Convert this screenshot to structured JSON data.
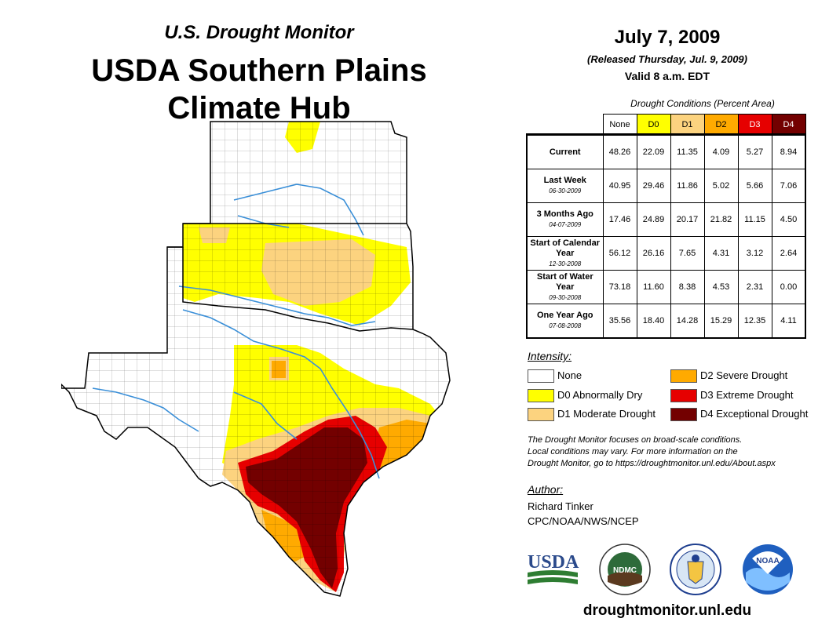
{
  "header": {
    "subtitle": "U.S. Drought Monitor",
    "title_line1": "USDA Southern Plains",
    "title_line2": "Climate Hub"
  },
  "release": {
    "date": "July 7, 2009",
    "released": "(Released Thursday, Jul. 9, 2009)",
    "valid": "Valid 8 a.m. EDT"
  },
  "table": {
    "caption": "Drought Conditions (Percent Area)",
    "columns": [
      "None",
      "D0",
      "D1",
      "D2",
      "D3",
      "D4"
    ],
    "column_colors": [
      "#ffffff",
      "#ffff00",
      "#fcd37f",
      "#ffaa00",
      "#e60000",
      "#730000"
    ],
    "rows": [
      {
        "label": "Current",
        "date": "",
        "values": [
          "48.26",
          "22.09",
          "11.35",
          "4.09",
          "5.27",
          "8.94"
        ]
      },
      {
        "label": "Last Week",
        "date": "06-30-2009",
        "values": [
          "40.95",
          "29.46",
          "11.86",
          "5.02",
          "5.66",
          "7.06"
        ]
      },
      {
        "label": "3 Months Ago",
        "date": "04-07-2009",
        "values": [
          "17.46",
          "24.89",
          "20.17",
          "21.82",
          "11.15",
          "4.50"
        ]
      },
      {
        "label": "Start of Calendar Year",
        "date": "12-30-2008",
        "values": [
          "56.12",
          "26.16",
          "7.65",
          "4.31",
          "3.12",
          "2.64"
        ]
      },
      {
        "label": "Start of Water Year",
        "date": "09-30-2008",
        "values": [
          "73.18",
          "11.60",
          "8.38",
          "4.53",
          "2.31",
          "0.00"
        ]
      },
      {
        "label": "One Year Ago",
        "date": "07-08-2008",
        "values": [
          "35.56",
          "18.40",
          "14.28",
          "15.29",
          "12.35",
          "4.11"
        ]
      }
    ]
  },
  "legend": {
    "title": "Intensity:",
    "items": [
      {
        "label": "None",
        "color": "#ffffff"
      },
      {
        "label": "D0 Abnormally Dry",
        "color": "#ffff00"
      },
      {
        "label": "D1 Moderate Drought",
        "color": "#fcd37f"
      },
      {
        "label": "D2 Severe Drought",
        "color": "#ffaa00"
      },
      {
        "label": "D3 Extreme Drought",
        "color": "#e60000"
      },
      {
        "label": "D4 Exceptional Drought",
        "color": "#730000"
      }
    ]
  },
  "note": {
    "line1": "The Drought Monitor focuses on broad-scale conditions.",
    "line2": "Local conditions may vary. For more information on the",
    "line3": "Drought Monitor, go to https://droughtmonitor.unl.edu/About.aspx"
  },
  "author": {
    "label": "Author:",
    "name": "Richard Tinker",
    "org": "CPC/NOAA/NWS/NCEP"
  },
  "logos": {
    "usda": "USDA",
    "ndmc": "NDMC",
    "noaa": "NOAA"
  },
  "footer": {
    "url": "droughtmonitor.unl.edu"
  },
  "map": {
    "states": [
      "Kansas",
      "Oklahoma",
      "Texas"
    ],
    "colors": {
      "none": "#ffffff",
      "d0": "#ffff00",
      "d1": "#fcd37f",
      "d2": "#ffaa00",
      "d3": "#e60000",
      "d4": "#730000",
      "river": "#3a8fd8",
      "border": "#000000"
    }
  }
}
